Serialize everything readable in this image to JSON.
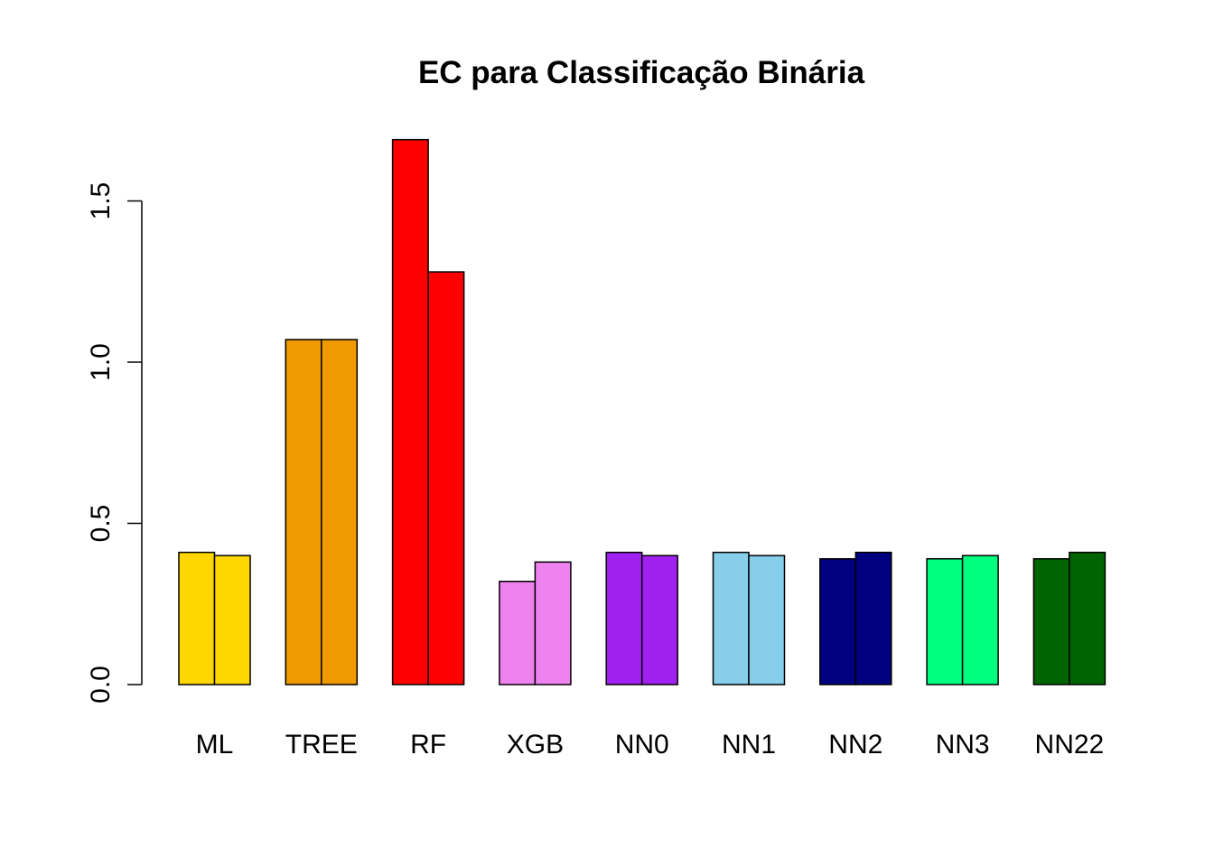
{
  "chart_data": {
    "type": "bar",
    "title": "EC para Classificação Binária",
    "xlabel": "",
    "ylabel": "",
    "categories": [
      "ML",
      "TREE",
      "RF",
      "XGB",
      "NN0",
      "NN1",
      "NN2",
      "NN3",
      "NN22"
    ],
    "series": [
      {
        "values": [
          0.41,
          1.07,
          1.69,
          0.32,
          0.41,
          0.41,
          0.39,
          0.39,
          0.39
        ]
      },
      {
        "values": [
          0.4,
          1.07,
          1.28,
          0.38,
          0.4,
          0.4,
          0.41,
          0.4,
          0.41
        ]
      }
    ],
    "colors": [
      "#FFD700",
      "#EE9A00",
      "#FF0000",
      "#EE82EE",
      "#A020F0",
      "#87CEEB",
      "#000080",
      "#00FF7F",
      "#006400"
    ],
    "yticks": [
      0.0,
      0.5,
      1.0,
      1.5
    ],
    "ytick_labels": [
      "0.0",
      "0.5",
      "1.0",
      "1.5"
    ],
    "ylim": [
      0,
      1.69
    ],
    "grid": false,
    "legend": "none"
  }
}
